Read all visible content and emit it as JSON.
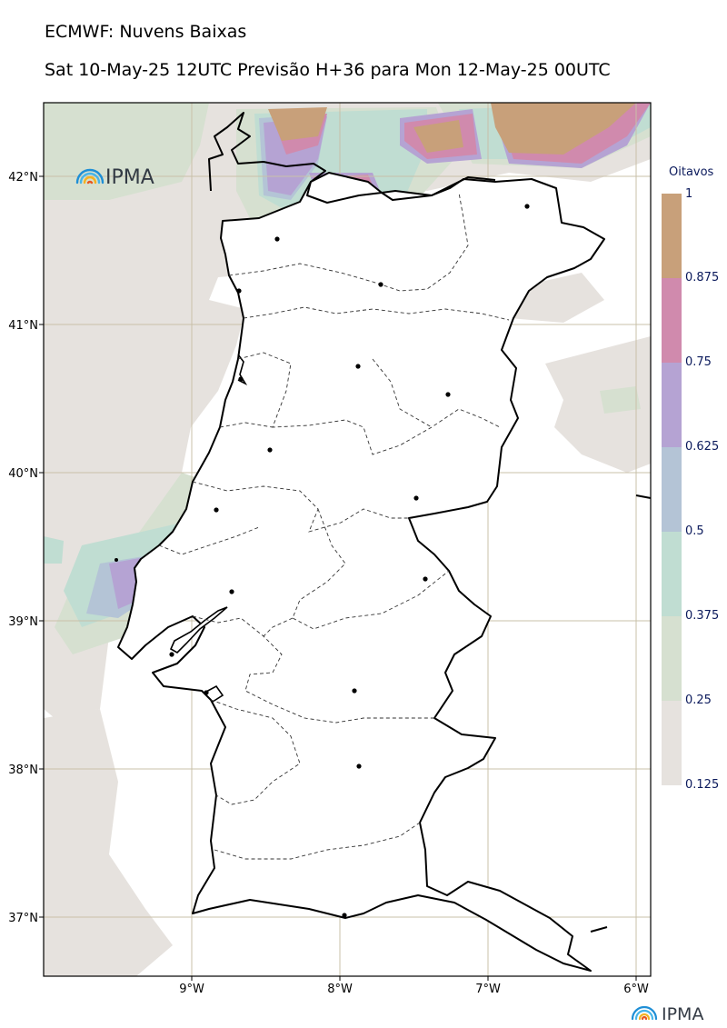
{
  "header": {
    "title": "ECMWF: Nuvens Baixas",
    "subtitle": "Sat 10-May-25 12UTC Previsão H+36 para Mon 12-May-25 00UTC"
  },
  "map": {
    "lat_labels": [
      "42°N",
      "41°N",
      "40°N",
      "39°N",
      "38°N",
      "37°N"
    ],
    "lon_labels": [
      "9°W",
      "8°W",
      "7°W",
      "6°W"
    ],
    "extent": {
      "lon_min": -10.0,
      "lon_max": -5.9,
      "lat_min": 36.6,
      "lat_max": 42.5
    }
  },
  "colorbar": {
    "title": "Oitavos",
    "labels": [
      "1",
      "0.875",
      "0.75",
      "0.625",
      "0.5",
      "0.375",
      "0.25",
      "0.125"
    ],
    "colors": [
      "#c8a07a",
      "#d08aad",
      "#b5a3d3",
      "#b4c4d6",
      "#c0ddd2",
      "#d6e0d0",
      "#e6e2de"
    ]
  },
  "logos": {
    "map_logo": "IPMA",
    "footer_logo": "IPMA"
  },
  "chart_data": {
    "type": "heatmap",
    "title": "ECMWF: Nuvens Baixas",
    "subtitle": "Sat 10-May-25 12UTC Previsão H+36 para Mon 12-May-25 00UTC",
    "legend_title": "Oitavos",
    "levels": [
      0.125,
      0.25,
      0.375,
      0.5,
      0.625,
      0.75,
      0.875,
      1
    ],
    "lon_ticks": [
      -9,
      -8,
      -7,
      -6
    ],
    "lat_ticks": [
      42,
      41,
      40,
      39,
      38,
      37
    ],
    "grid": true,
    "legend_position": "right"
  }
}
